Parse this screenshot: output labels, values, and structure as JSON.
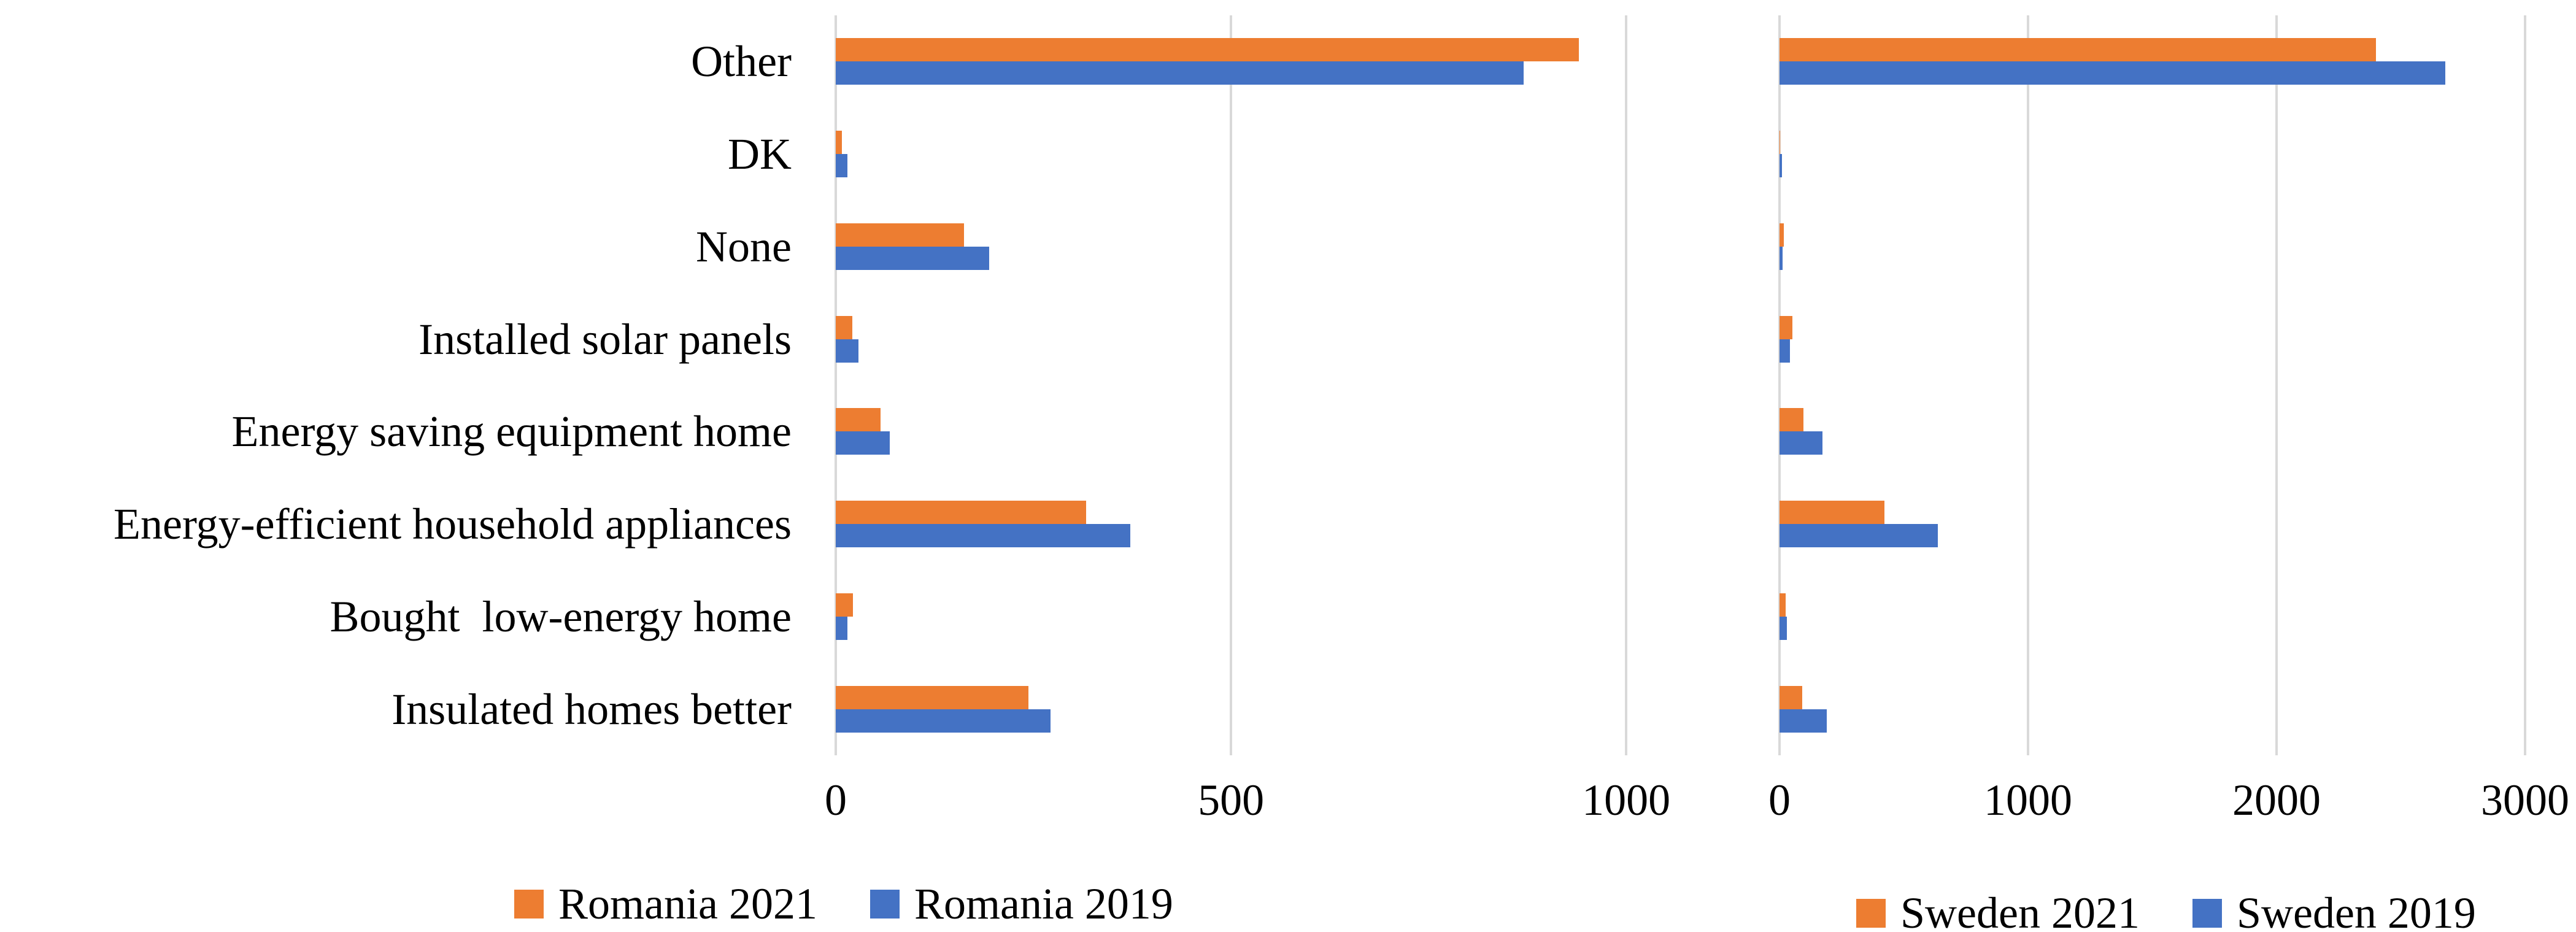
{
  "figure": {
    "description": "Two horizontal grouped bar charts comparing energy-saving actions, Romania vs Sweden, 2021 vs 2019",
    "background": "#ffffff"
  },
  "colors": {
    "series_2021": "#ED7D31",
    "series_2019": "#4472C4",
    "gridline": "#D9D9D9",
    "axis_line": "#D9D9D9",
    "text": "#000000"
  },
  "categories": [
    "Other",
    "DK",
    "None",
    "Installed solar panels",
    "Energy saving equipment home",
    "Energy-efficient household appliances",
    "Bought  low-energy home",
    "Insulated homes better"
  ],
  "chart_data": [
    {
      "id": "romania",
      "type": "bar",
      "orientation": "horizontal",
      "title": "",
      "xlabel": "",
      "ylabel": "",
      "grid": true,
      "legend_position": "bottom",
      "categories": [
        "Other",
        "DK",
        "None",
        "Installed solar panels",
        "Energy saving equipment home",
        "Energy-efficient household appliances",
        "Bought  low-energy home",
        "Insulated homes better"
      ],
      "series": [
        {
          "name": "Romania 2021",
          "color": "#ED7D31",
          "values": [
            940,
            8,
            162,
            21,
            57,
            317,
            22,
            244
          ]
        },
        {
          "name": "Romania 2019",
          "color": "#4472C4",
          "values": [
            870,
            15,
            194,
            29,
            68,
            373,
            15,
            272
          ]
        }
      ],
      "xlim": [
        0,
        1100
      ],
      "x_ticks": [
        0,
        500,
        1000
      ],
      "x_tick_labels": [
        "0",
        "500",
        "1000"
      ]
    },
    {
      "id": "sweden",
      "type": "bar",
      "orientation": "horizontal",
      "title": "",
      "xlabel": "",
      "ylabel": "",
      "grid": true,
      "legend_position": "bottom",
      "categories": [
        "Other",
        "DK",
        "None",
        "Installed solar panels",
        "Energy saving equipment home",
        "Energy-efficient household appliances",
        "Bought  low-energy home",
        "Insulated homes better"
      ],
      "series": [
        {
          "name": "Sweden 2021",
          "color": "#ED7D31",
          "values": [
            2400,
            2,
            17,
            52,
            97,
            421,
            24,
            91
          ]
        },
        {
          "name": "Sweden 2019",
          "color": "#4472C4",
          "values": [
            2680,
            11,
            13,
            41,
            172,
            636,
            30,
            191
          ]
        }
      ],
      "xlim": [
        0,
        3200
      ],
      "x_ticks": [
        0,
        1000,
        2000,
        3000
      ],
      "x_tick_labels": [
        "0",
        "1000",
        "2000",
        "3000"
      ]
    }
  ],
  "legends": [
    {
      "items": [
        {
          "label": "Romania 2021",
          "color": "#ED7D31"
        },
        {
          "label": "Romania 2019",
          "color": "#4472C4"
        }
      ]
    },
    {
      "items": [
        {
          "label": "Sweden 2021",
          "color": "#ED7D31"
        },
        {
          "label": "Sweden 2019",
          "color": "#4472C4"
        }
      ]
    }
  ]
}
